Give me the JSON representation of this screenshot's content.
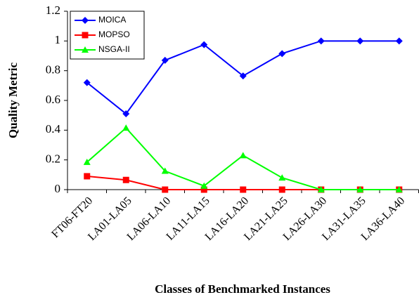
{
  "chart_data": {
    "type": "line",
    "x_label": "Classes of Benchmarked Instances",
    "y_label": "Quality Metric",
    "categories": [
      "FT06-FT20",
      "LA01-LA05",
      "LA06-LA10",
      "LA11-LA15",
      "LA16-LA20",
      "LA21-LA25",
      "LA26-LA30",
      "LA31-LA35",
      "LA36-LA40"
    ],
    "series": [
      {
        "name": "MOICA",
        "color": "#0000ff",
        "marker": "diamond",
        "values": [
          0.72,
          0.51,
          0.87,
          0.975,
          0.765,
          0.915,
          1,
          1,
          1
        ]
      },
      {
        "name": "MOPSO",
        "color": "#ff0000",
        "marker": "square",
        "values": [
          0.09,
          0.065,
          0,
          0,
          0,
          0,
          0,
          0,
          0
        ]
      },
      {
        "name": "NSGA-II",
        "color": "#00ff00",
        "marker": "triangle",
        "values": [
          0.185,
          0.415,
          0.125,
          0.025,
          0.23,
          0.08,
          0,
          0,
          0
        ]
      }
    ],
    "ylim": [
      0,
      1.2
    ],
    "yticks": [
      0,
      0.2,
      0.4,
      0.6,
      0.8,
      1,
      1.2
    ],
    "legend": "upper left"
  }
}
